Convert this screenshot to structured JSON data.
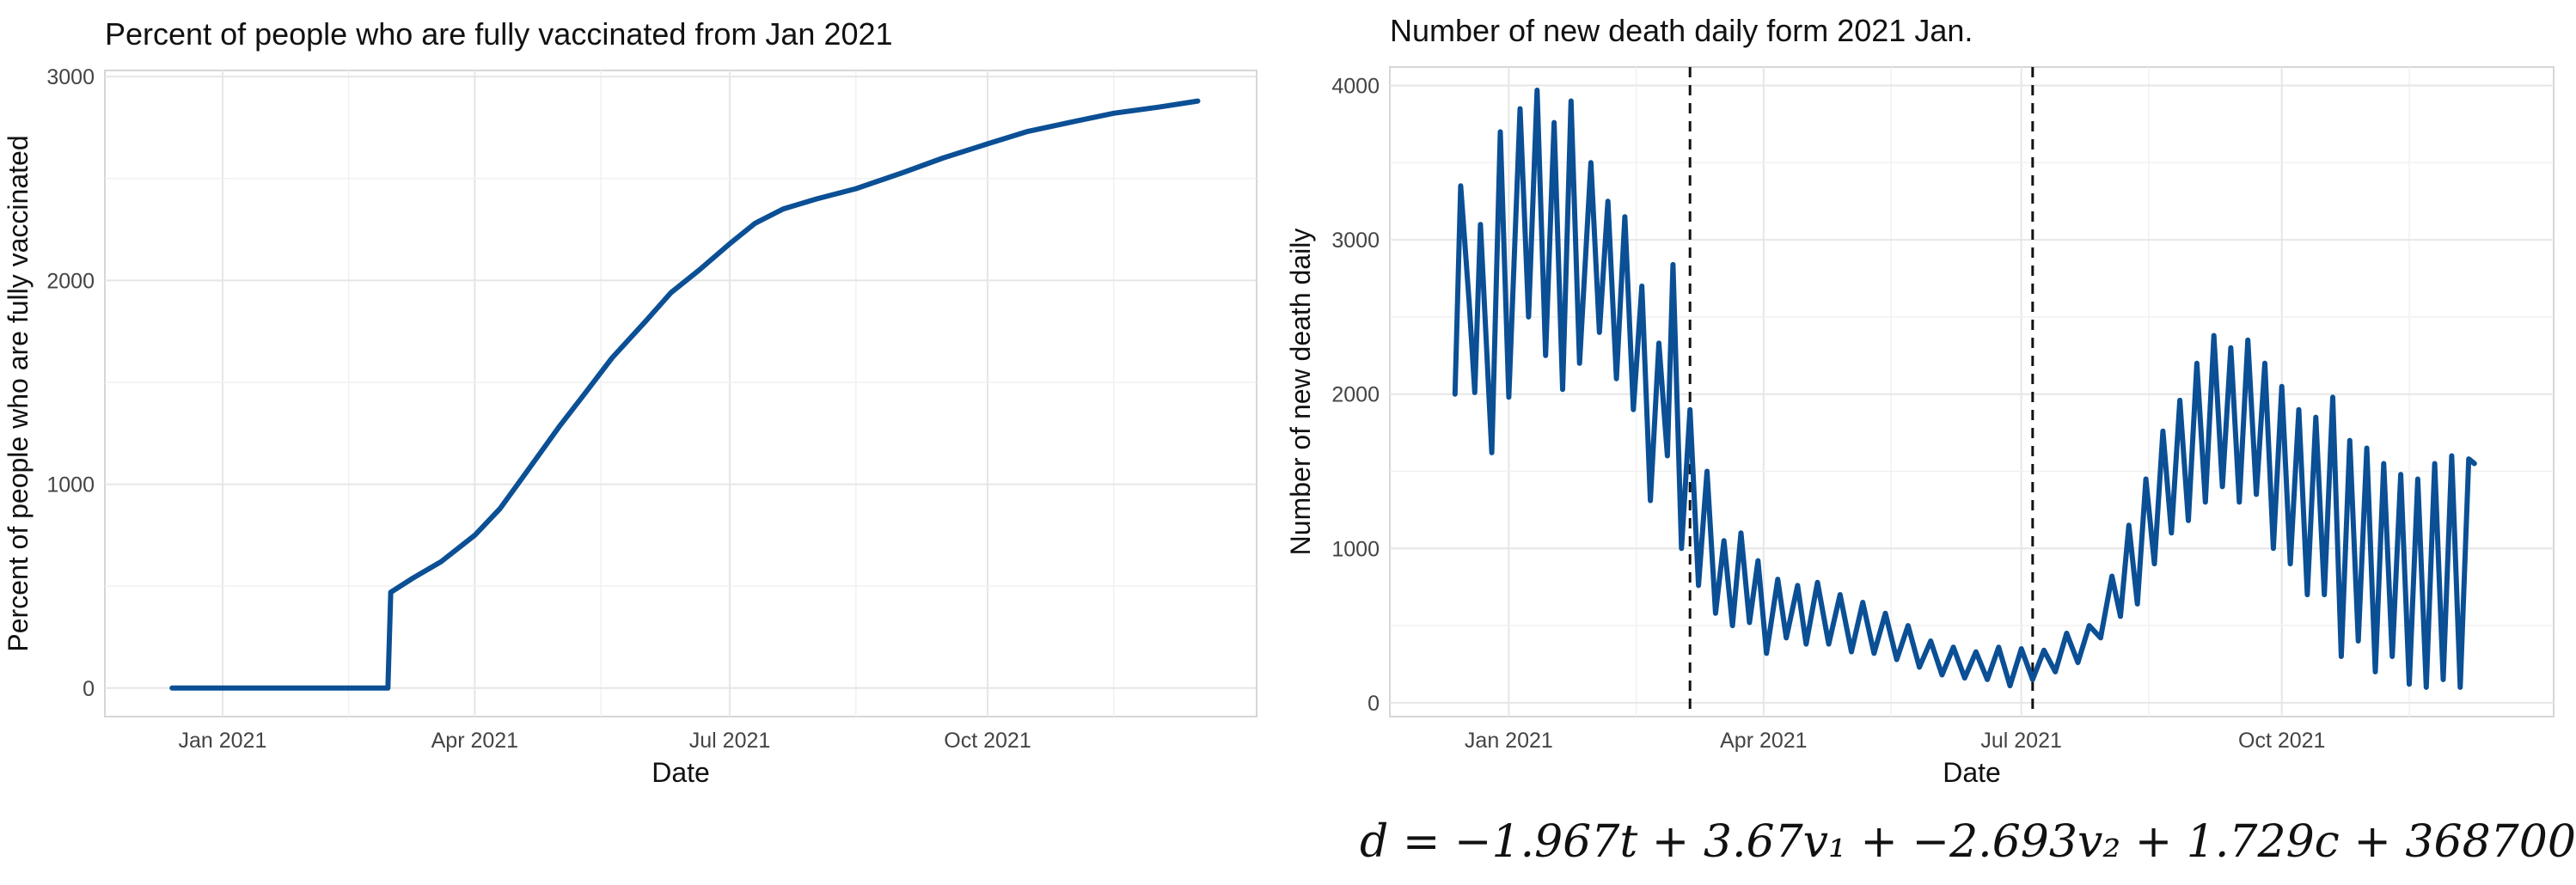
{
  "chart_data": [
    {
      "type": "line",
      "title": "Percent of people who are fully vaccinated from Jan 2021",
      "xlabel": "Date",
      "ylabel": "Percent of people who are fully vaccinated",
      "x_ticks": [
        "Jan 2021",
        "Apr 2021",
        "Jul 2021",
        "Oct 2021"
      ],
      "y_ticks": [
        "0",
        "1000",
        "2000",
        "3000"
      ],
      "xlim": [
        "2020-11-20",
        "2022-01-05"
      ],
      "ylim": [
        -140,
        3030
      ],
      "grid": true,
      "color": "#0b4f95",
      "series": [
        {
          "points": [
            [
              "2020-12-14",
              0
            ],
            [
              "2021-03-01",
              0
            ],
            [
              "2021-03-02",
              470
            ],
            [
              "2021-03-10",
              540
            ],
            [
              "2021-03-20",
              620
            ],
            [
              "2021-04-01",
              750
            ],
            [
              "2021-04-10",
              880
            ],
            [
              "2021-04-20",
              1070
            ],
            [
              "2021-05-01",
              1280
            ],
            [
              "2021-05-10",
              1440
            ],
            [
              "2021-05-20",
              1620
            ],
            [
              "2021-06-01",
              1800
            ],
            [
              "2021-06-10",
              1940
            ],
            [
              "2021-06-20",
              2050
            ],
            [
              "2021-07-01",
              2180
            ],
            [
              "2021-07-10",
              2280
            ],
            [
              "2021-07-20",
              2350
            ],
            [
              "2021-08-01",
              2400
            ],
            [
              "2021-08-15",
              2450
            ],
            [
              "2021-09-01",
              2530
            ],
            [
              "2021-09-15",
              2600
            ],
            [
              "2021-10-01",
              2670
            ],
            [
              "2021-10-15",
              2730
            ],
            [
              "2021-11-01",
              2780
            ],
            [
              "2021-11-15",
              2820
            ],
            [
              "2021-12-01",
              2850
            ],
            [
              "2021-12-15",
              2880
            ]
          ]
        }
      ]
    },
    {
      "type": "line",
      "title": "Number of new death daily form 2021 Jan.",
      "xlabel": "Date",
      "ylabel": "Number of new death daily",
      "x_ticks": [
        "Jan 2021",
        "Apr 2021",
        "Jul 2021",
        "Oct 2021"
      ],
      "y_ticks": [
        "0",
        "1000",
        "2000",
        "3000",
        "4000"
      ],
      "xlim": [
        "2020-11-20",
        "2022-01-05"
      ],
      "ylim": [
        -90,
        4120
      ],
      "grid": true,
      "color": "#0b4f95",
      "vlines": [
        "2021-03-06",
        "2021-07-05"
      ],
      "series": [
        {
          "points": [
            [
              "2020-12-13",
              2000
            ],
            [
              "2020-12-15",
              3350
            ],
            [
              "2020-12-18",
              2600
            ],
            [
              "2020-12-20",
              2010
            ],
            [
              "2020-12-22",
              3100
            ],
            [
              "2020-12-26",
              1620
            ],
            [
              "2020-12-29",
              3700
            ],
            [
              "2021-01-01",
              1980
            ],
            [
              "2021-01-05",
              3850
            ],
            [
              "2021-01-08",
              2500
            ],
            [
              "2021-01-11",
              3970
            ],
            [
              "2021-01-14",
              2250
            ],
            [
              "2021-01-17",
              3760
            ],
            [
              "2021-01-20",
              2030
            ],
            [
              "2021-01-23",
              3900
            ],
            [
              "2021-01-26",
              2200
            ],
            [
              "2021-01-30",
              3500
            ],
            [
              "2021-02-02",
              2400
            ],
            [
              "2021-02-05",
              3250
            ],
            [
              "2021-02-08",
              2100
            ],
            [
              "2021-02-11",
              3150
            ],
            [
              "2021-02-14",
              1900
            ],
            [
              "2021-02-17",
              2700
            ],
            [
              "2021-02-20",
              1310
            ],
            [
              "2021-02-23",
              2330
            ],
            [
              "2021-02-26",
              1600
            ],
            [
              "2021-02-28",
              2840
            ],
            [
              "2021-03-03",
              1000
            ],
            [
              "2021-03-06",
              1900
            ],
            [
              "2021-03-09",
              760
            ],
            [
              "2021-03-12",
              1500
            ],
            [
              "2021-03-15",
              580
            ],
            [
              "2021-03-18",
              1050
            ],
            [
              "2021-03-21",
              500
            ],
            [
              "2021-03-24",
              1100
            ],
            [
              "2021-03-27",
              520
            ],
            [
              "2021-03-30",
              920
            ],
            [
              "2021-04-02",
              320
            ],
            [
              "2021-04-06",
              800
            ],
            [
              "2021-04-09",
              420
            ],
            [
              "2021-04-13",
              760
            ],
            [
              "2021-04-16",
              380
            ],
            [
              "2021-04-20",
              780
            ],
            [
              "2021-04-24",
              380
            ],
            [
              "2021-04-28",
              700
            ],
            [
              "2021-05-02",
              330
            ],
            [
              "2021-05-06",
              650
            ],
            [
              "2021-05-10",
              320
            ],
            [
              "2021-05-14",
              580
            ],
            [
              "2021-05-18",
              280
            ],
            [
              "2021-05-22",
              500
            ],
            [
              "2021-05-26",
              230
            ],
            [
              "2021-05-30",
              400
            ],
            [
              "2021-06-03",
              180
            ],
            [
              "2021-06-07",
              360
            ],
            [
              "2021-06-11",
              160
            ],
            [
              "2021-06-15",
              330
            ],
            [
              "2021-06-19",
              150
            ],
            [
              "2021-06-23",
              360
            ],
            [
              "2021-06-27",
              110
            ],
            [
              "2021-07-01",
              350
            ],
            [
              "2021-07-05",
              150
            ],
            [
              "2021-07-09",
              340
            ],
            [
              "2021-07-13",
              200
            ],
            [
              "2021-07-17",
              450
            ],
            [
              "2021-07-21",
              260
            ],
            [
              "2021-07-25",
              500
            ],
            [
              "2021-07-29",
              420
            ],
            [
              "2021-08-02",
              820
            ],
            [
              "2021-08-05",
              560
            ],
            [
              "2021-08-08",
              1150
            ],
            [
              "2021-08-11",
              640
            ],
            [
              "2021-08-14",
              1450
            ],
            [
              "2021-08-17",
              900
            ],
            [
              "2021-08-20",
              1760
            ],
            [
              "2021-08-23",
              1100
            ],
            [
              "2021-08-26",
              1960
            ],
            [
              "2021-08-29",
              1180
            ],
            [
              "2021-09-01",
              2200
            ],
            [
              "2021-09-04",
              1300
            ],
            [
              "2021-09-07",
              2380
            ],
            [
              "2021-09-10",
              1400
            ],
            [
              "2021-09-13",
              2300
            ],
            [
              "2021-09-16",
              1300
            ],
            [
              "2021-09-19",
              2350
            ],
            [
              "2021-09-22",
              1350
            ],
            [
              "2021-09-25",
              2200
            ],
            [
              "2021-09-28",
              1000
            ],
            [
              "2021-10-01",
              2050
            ],
            [
              "2021-10-04",
              900
            ],
            [
              "2021-10-07",
              1900
            ],
            [
              "2021-10-10",
              700
            ],
            [
              "2021-10-13",
              1850
            ],
            [
              "2021-10-16",
              700
            ],
            [
              "2021-10-19",
              1980
            ],
            [
              "2021-10-22",
              300
            ],
            [
              "2021-10-25",
              1700
            ],
            [
              "2021-10-28",
              400
            ],
            [
              "2021-10-31",
              1650
            ],
            [
              "2021-11-03",
              200
            ],
            [
              "2021-11-06",
              1550
            ],
            [
              "2021-11-09",
              300
            ],
            [
              "2021-11-12",
              1480
            ],
            [
              "2021-11-15",
              120
            ],
            [
              "2021-11-18",
              1450
            ],
            [
              "2021-11-21",
              100
            ],
            [
              "2021-11-24",
              1550
            ],
            [
              "2021-11-27",
              150
            ],
            [
              "2021-11-30",
              1600
            ],
            [
              "2021-12-03",
              100
            ],
            [
              "2021-12-06",
              1580
            ],
            [
              "2021-12-08",
              1550
            ]
          ]
        }
      ]
    }
  ],
  "equation": {
    "text": "d = −1.967t + 3.67v₁ + −2.693v₂ + 1.729c + 368700"
  }
}
